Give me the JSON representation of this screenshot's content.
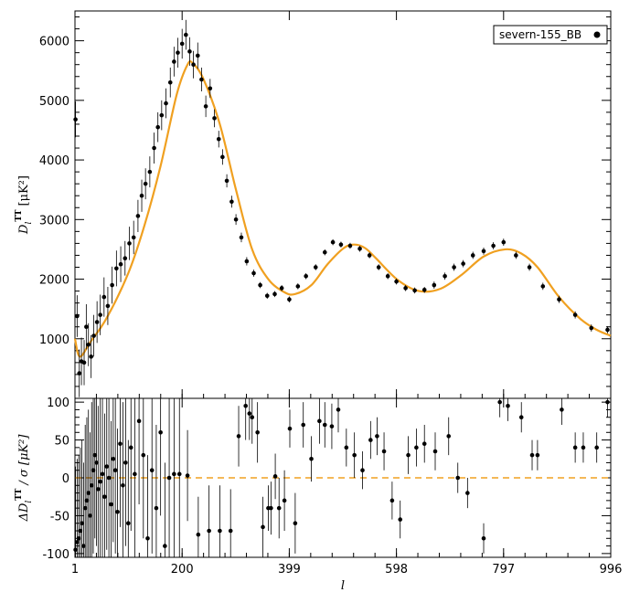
{
  "colors": {
    "model_line": "#f0a020",
    "points": "#000000",
    "axes": "#000000",
    "zero_line": "#f0a020"
  },
  "chart_data": [
    {
      "type": "scatter",
      "title": "",
      "xlabel": "",
      "ylabel_symbol": "D",
      "ylabel_sub": "l",
      "ylabel_sup": "TT",
      "ylabel_unit": "[μK²]",
      "xlim": [
        1,
        996
      ],
      "ylim": [
        0,
        6500
      ],
      "y_ticks": [
        1000,
        2000,
        3000,
        4000,
        5000,
        6000
      ],
      "y_tick_labels": [
        "1000",
        "2000",
        "3000",
        "4000",
        "5000",
        "6000"
      ],
      "legend": {
        "label": "severn-155_BB",
        "position": "top-right"
      },
      "model": {
        "type": "line",
        "x": [
          1,
          10,
          30,
          60,
          100,
          130,
          160,
          190,
          210,
          220,
          240,
          270,
          300,
          330,
          360,
          390,
          410,
          440,
          470,
          500,
          520,
          540,
          560,
          600,
          640,
          680,
          720,
          760,
          800,
          830,
          860,
          900,
          940,
          970,
          996
        ],
        "y": [
          1000,
          700,
          950,
          1350,
          2100,
          2900,
          3900,
          5100,
          5600,
          5620,
          5350,
          4600,
          3500,
          2500,
          2000,
          1780,
          1750,
          1900,
          2250,
          2520,
          2580,
          2520,
          2350,
          1990,
          1800,
          1840,
          2080,
          2380,
          2500,
          2430,
          2200,
          1700,
          1330,
          1150,
          1050
        ]
      },
      "series": [
        {
          "name": "severn-155_BB",
          "x": [
            2,
            5,
            9,
            13,
            18,
            22,
            26,
            31,
            36,
            42,
            48,
            55,
            62,
            70,
            78,
            86,
            94,
            102,
            110,
            118,
            125,
            132,
            140,
            148,
            155,
            162,
            170,
            178,
            185,
            192,
            200,
            207,
            214,
            221,
            229,
            236,
            244,
            252,
            260,
            268,
            275,
            283,
            292,
            300,
            310,
            320,
            333,
            345,
            358,
            372,
            385,
            399,
            415,
            430,
            448,
            465,
            480,
            495,
            512,
            530,
            548,
            565,
            582,
            598,
            615,
            632,
            650,
            668,
            688,
            705,
            722,
            740,
            760,
            778,
            797,
            820,
            845,
            870,
            900,
            930,
            960,
            990
          ],
          "y": [
            4680,
            1380,
            420,
            620,
            600,
            1200,
            900,
            700,
            1050,
            1280,
            1400,
            1700,
            1550,
            1900,
            2180,
            2250,
            2350,
            2600,
            2700,
            3060,
            3400,
            3600,
            3800,
            4200,
            4550,
            4750,
            4950,
            5300,
            5650,
            5800,
            5950,
            6100,
            5820,
            5600,
            5750,
            5350,
            4900,
            5200,
            4700,
            4350,
            4050,
            3650,
            3300,
            3000,
            2700,
            2300,
            2100,
            1900,
            1720,
            1750,
            1850,
            1660,
            1880,
            2050,
            2200,
            2450,
            2620,
            2580,
            2560,
            2510,
            2400,
            2200,
            2050,
            1960,
            1850,
            1810,
            1820,
            1900,
            2050,
            2200,
            2260,
            2400,
            2470,
            2560,
            2620,
            2400,
            2200,
            1880,
            1660,
            1400,
            1180,
            1150
          ],
          "err": [
            300,
            350,
            400,
            400,
            380,
            380,
            360,
            360,
            350,
            350,
            340,
            330,
            320,
            310,
            300,
            300,
            290,
            280,
            280,
            270,
            270,
            260,
            260,
            260,
            250,
            250,
            250,
            250,
            250,
            250,
            250,
            250,
            240,
            230,
            220,
            200,
            180,
            160,
            150,
            140,
            130,
            110,
            100,
            90,
            80,
            70,
            60,
            50,
            50,
            50,
            50,
            50,
            50,
            50,
            50,
            50,
            50,
            50,
            50,
            50,
            50,
            50,
            50,
            50,
            50,
            50,
            50,
            60,
            60,
            60,
            60,
            60,
            60,
            60,
            60,
            60,
            60,
            60,
            60,
            60,
            60,
            60
          ]
        }
      ]
    },
    {
      "type": "scatter",
      "title": "",
      "xlabel": "l",
      "ylabel_symbol": "ΔD",
      "ylabel_sub": "l",
      "ylabel_sup": "TT",
      "ylabel_rest": "/ σ [μK²]",
      "xlim": [
        1,
        996
      ],
      "ylim": [
        -105,
        105
      ],
      "x_ticks": [
        1,
        200,
        399,
        598,
        797,
        996
      ],
      "x_tick_labels": [
        "1",
        "200",
        "399",
        "598",
        "797",
        "996"
      ],
      "y_ticks": [
        -100,
        -50,
        0,
        50,
        100
      ],
      "y_tick_labels": [
        "-100",
        "-50",
        "0",
        "50",
        "100"
      ],
      "zero_line": 0,
      "series": [
        {
          "name": "residuals",
          "x": [
            2,
            5,
            8,
            11,
            14,
            17,
            20,
            23,
            26,
            29,
            32,
            35,
            38,
            41,
            44,
            48,
            52,
            56,
            60,
            64,
            68,
            72,
            76,
            80,
            85,
            90,
            95,
            100,
            105,
            112,
            120,
            128,
            136,
            144,
            152,
            160,
            168,
            176,
            185,
            195,
            210,
            230,
            250,
            270,
            290,
            305,
            318,
            325,
            330,
            340,
            350,
            360,
            365,
            373,
            380,
            390,
            400,
            410,
            425,
            440,
            455,
            465,
            478,
            490,
            505,
            520,
            535,
            550,
            562,
            575,
            590,
            605,
            620,
            635,
            650,
            670,
            695,
            712,
            730,
            760,
            790,
            805,
            830,
            850,
            860,
            905,
            930,
            945,
            970,
            990
          ],
          "y": [
            -95,
            -85,
            -80,
            -70,
            -60,
            -90,
            -40,
            -30,
            -20,
            -50,
            -10,
            10,
            30,
            20,
            -15,
            -5,
            5,
            -25,
            15,
            0,
            -35,
            25,
            10,
            -45,
            45,
            -10,
            20,
            -60,
            40,
            5,
            75,
            30,
            -80,
            10,
            -40,
            60,
            -90,
            0,
            5,
            5,
            3,
            -75,
            -70,
            -70,
            -70,
            55,
            95,
            85,
            80,
            60,
            -65,
            -40,
            -40,
            2,
            -40,
            -30,
            65,
            -60,
            70,
            25,
            75,
            70,
            68,
            90,
            40,
            30,
            10,
            50,
            55,
            35,
            -30,
            -55,
            30,
            40,
            45,
            35,
            55,
            0,
            -20,
            -80,
            100,
            95,
            80,
            30,
            30,
            90,
            40,
            40,
            40,
            100
          ],
          "err": [
            110,
            110,
            110,
            110,
            110,
            110,
            110,
            110,
            110,
            110,
            110,
            110,
            110,
            110,
            110,
            110,
            110,
            110,
            110,
            110,
            110,
            110,
            110,
            110,
            110,
            110,
            110,
            110,
            110,
            110,
            110,
            110,
            110,
            110,
            110,
            110,
            110,
            110,
            110,
            110,
            60,
            50,
            60,
            60,
            55,
            40,
            45,
            35,
            35,
            40,
            40,
            30,
            35,
            30,
            40,
            40,
            25,
            40,
            30,
            30,
            30,
            30,
            30,
            30,
            25,
            30,
            25,
            25,
            25,
            25,
            25,
            25,
            25,
            25,
            25,
            25,
            25,
            20,
            20,
            20,
            20,
            20,
            20,
            20,
            20,
            20,
            20,
            20,
            20,
            20
          ]
        }
      ]
    }
  ]
}
